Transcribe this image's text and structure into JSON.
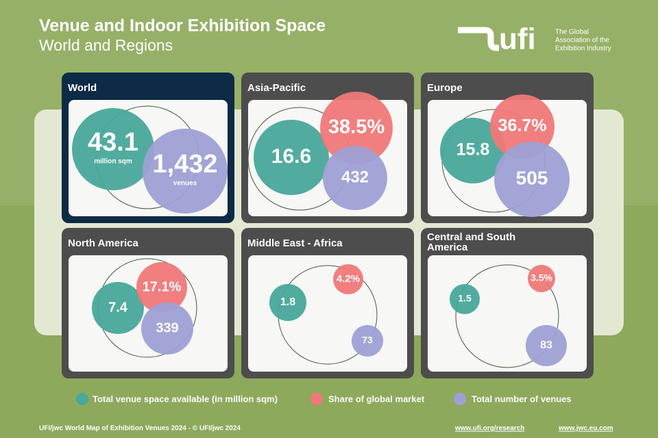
{
  "header": {
    "title": "Venue and Indoor Exhibition Space",
    "subtitle": "World and Regions"
  },
  "logo": {
    "mark": "ufi",
    "tagline": [
      "The Global",
      "Association of the",
      "Exhibition Industry"
    ]
  },
  "panels": [
    {
      "name": "World",
      "space": "43.1",
      "space_unit": "million sqm",
      "venues": "1,432",
      "venues_unit": "venues"
    },
    {
      "name": "Asia-Pacific",
      "space": "16.6",
      "share": "38.5%",
      "venues": "432"
    },
    {
      "name": "Europe",
      "space": "15.8",
      "share": "36.7%",
      "venues": "505"
    },
    {
      "name": "North America",
      "space": "7.4",
      "share": "17.1%",
      "venues": "339"
    },
    {
      "name": "Middle East - Africa",
      "space": "1.8",
      "share": "4.2%",
      "venues": "73"
    },
    {
      "name": "Central and South America",
      "space": "1.5",
      "share": "3.5%",
      "venues": "83"
    }
  ],
  "legend": {
    "space": "Total venue space available (in million sqm)",
    "share": "Share of global market",
    "venues": "Total number of venues"
  },
  "footer": {
    "credit": "UFI/jwc World Map of Exhibition Venues 2024 - © UFI/jwc 2024",
    "links": [
      "www.ufi.org/research",
      "www.jwc.eu.com"
    ]
  }
}
